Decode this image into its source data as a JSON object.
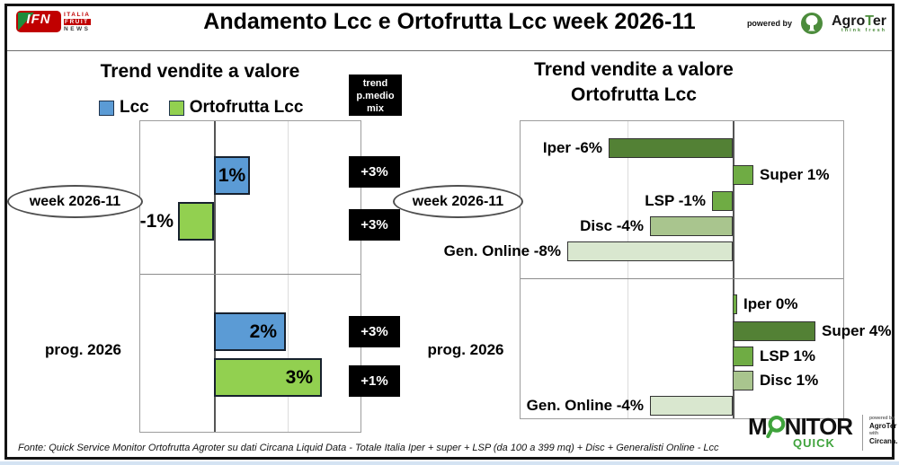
{
  "header": {
    "title": "Andamento Lcc e Ortofrutta Lcc week 2026-11",
    "ifn_logo": {
      "acronym": "IFN",
      "line1": "ITALIA",
      "line2": "FRUIT",
      "line3": "NEWS"
    },
    "powered_by": "powered by",
    "agroter": {
      "name_pre": "Agro",
      "name_t": "T",
      "name_post": "er",
      "tagline": "think fresh"
    }
  },
  "left_panel": {
    "title": "Trend vendite a valore",
    "legend": [
      {
        "label": "Lcc",
        "color": "#5B9BD5"
      },
      {
        "label": "Ortofrutta Lcc",
        "color": "#92D050"
      }
    ],
    "trend_box": {
      "line1": "trend",
      "line2": "p.medio",
      "line3": "mix"
    },
    "rows": [
      {
        "group": "week 2026-11",
        "bars": [
          {
            "series": "Lcc",
            "value": 1,
            "label": "1%",
            "color": "#5B9BD5"
          },
          {
            "series": "Ortofrutta Lcc",
            "value": -1,
            "label": "-1%",
            "color": "#92D050"
          }
        ],
        "trend": [
          "+3%",
          "+3%"
        ]
      },
      {
        "group": "prog. 2026",
        "bars": [
          {
            "series": "Lcc",
            "value": 2,
            "label": "2%",
            "color": "#5B9BD5"
          },
          {
            "series": "Ortofrutta Lcc",
            "value": 3,
            "label": "3%",
            "color": "#92D050"
          }
        ],
        "trend": [
          "+3%",
          "+1%"
        ]
      }
    ]
  },
  "right_panel": {
    "title_line1": "Trend vendite a valore",
    "title_line2": "Ortofrutta Lcc",
    "groups": [
      {
        "group": "week 2026-11",
        "items": [
          {
            "label": "Iper -6%",
            "value": -6,
            "color": "#538135"
          },
          {
            "label": "Super 1%",
            "value": 1,
            "color": "#6FAC44"
          },
          {
            "label": "LSP -1%",
            "value": -1,
            "color": "#6FAC44"
          },
          {
            "label": "Disc -4%",
            "value": -4,
            "color": "#A9C58E"
          },
          {
            "label": "Gen. Online -8%",
            "value": -8,
            "color": "#D9E7CF"
          }
        ]
      },
      {
        "group": "prog. 2026",
        "items": [
          {
            "label": "Iper 0%",
            "value": 0,
            "color": "#6FAC44"
          },
          {
            "label": "Super 4%",
            "value": 4,
            "color": "#538135"
          },
          {
            "label": "LSP 1%",
            "value": 1,
            "color": "#6FAC44"
          },
          {
            "label": "Disc 1%",
            "value": 1,
            "color": "#A9C58E"
          },
          {
            "label": "Gen. Online -4%",
            "value": -4,
            "color": "#D9E7CF"
          }
        ]
      }
    ]
  },
  "footer": {
    "source": "Fonte: Quick Service Monitor Ortofrutta Agroter su dati Circana Liquid Data - Totale Italia Iper + super + LSP (da 100 a 399 mq) + Disc + Generalisti Online - Lcc"
  },
  "monitor_logo": {
    "m": "M",
    "nitor": "NITOR",
    "quick": "QUICK",
    "powered_by": "powered by",
    "agroter": "AgroTer",
    "with": "with",
    "circana": "Circana."
  },
  "chart_data": [
    {
      "type": "bar",
      "orientation": "horizontal",
      "title": "Trend vendite a valore",
      "legend_entries": [
        "Lcc",
        "Ortofrutta Lcc"
      ],
      "unit": "%",
      "groups": [
        {
          "label": "week 2026-11",
          "series": [
            {
              "name": "Lcc",
              "value": 1
            },
            {
              "name": "Ortofrutta Lcc",
              "value": -1
            }
          ],
          "trend_p_medio_mix": [
            "+3%",
            "+3%"
          ]
        },
        {
          "label": "prog. 2026",
          "series": [
            {
              "name": "Lcc",
              "value": 2
            },
            {
              "name": "Ortofrutta Lcc",
              "value": 3
            }
          ],
          "trend_p_medio_mix": [
            "+3%",
            "+1%"
          ]
        }
      ],
      "xlim": [
        -2,
        4
      ],
      "grid": true
    },
    {
      "type": "bar",
      "orientation": "horizontal",
      "title": "Trend vendite a valore Ortofrutta Lcc",
      "unit": "%",
      "categories": [
        "Iper",
        "Super",
        "LSP",
        "Disc",
        "Gen. Online"
      ],
      "series": [
        {
          "name": "week 2026-11",
          "values": [
            -6,
            1,
            -1,
            -4,
            -8
          ]
        },
        {
          "name": "prog. 2026",
          "values": [
            0,
            4,
            1,
            1,
            -4
          ]
        }
      ],
      "xlim": [
        -10,
        5
      ],
      "grid": true
    }
  ]
}
